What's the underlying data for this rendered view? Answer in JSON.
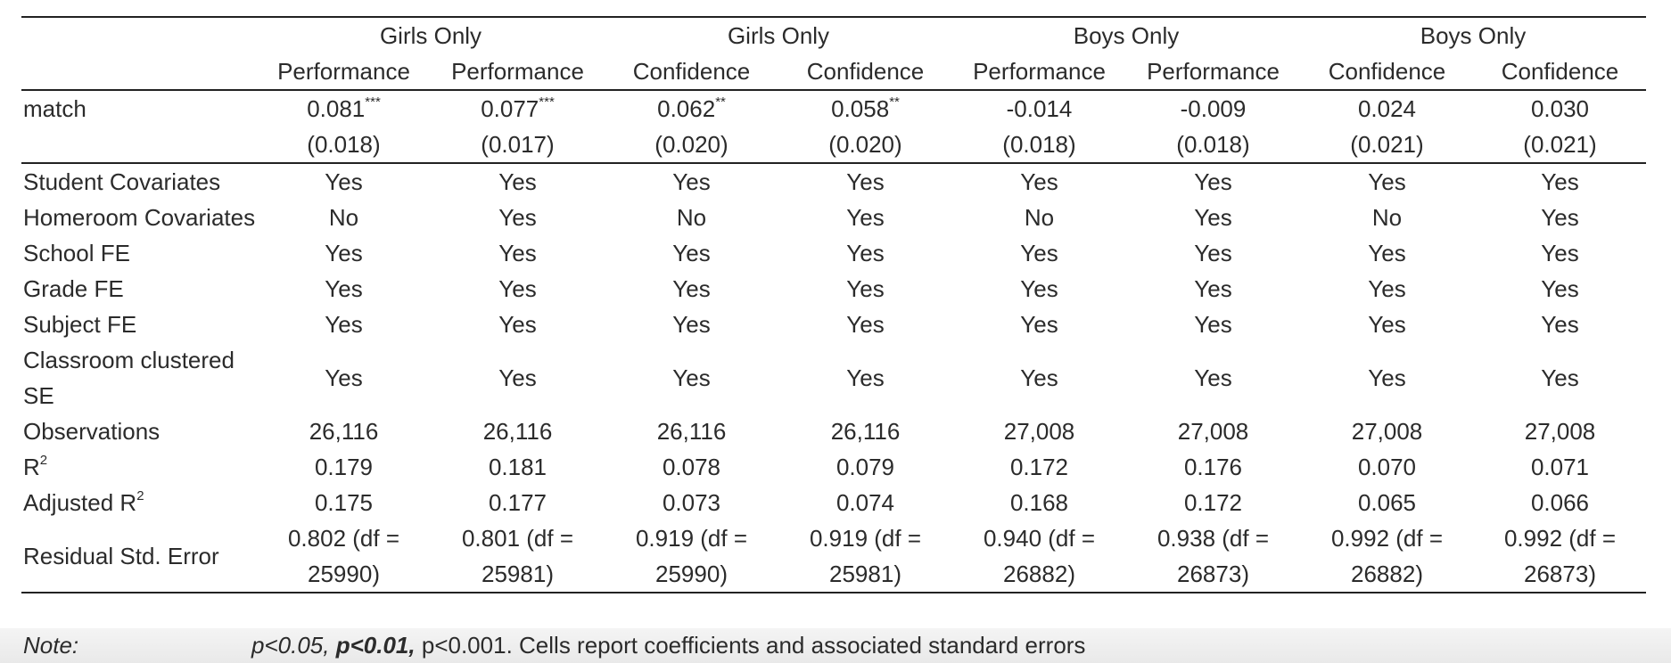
{
  "table": {
    "group_headers": [
      "Girls Only",
      "Girls Only",
      "Boys Only",
      "Boys Only"
    ],
    "columns": [
      "Performance",
      "Performance",
      "Confidence",
      "Confidence",
      "Performance",
      "Performance",
      "Confidence",
      "Confidence"
    ],
    "match": {
      "label": "match",
      "coefficients": [
        "0.081",
        "0.077",
        "0.062",
        "0.058",
        "-0.014",
        "-0.009",
        "0.024",
        "0.030"
      ],
      "stars": [
        "***",
        "***",
        "**",
        "**",
        "",
        "",
        "",
        ""
      ],
      "std_errors": [
        "(0.018)",
        "(0.017)",
        "(0.020)",
        "(0.020)",
        "(0.018)",
        "(0.018)",
        "(0.021)",
        "(0.021)"
      ]
    },
    "controls": [
      {
        "label": "Student Covariates",
        "values": [
          "Yes",
          "Yes",
          "Yes",
          "Yes",
          "Yes",
          "Yes",
          "Yes",
          "Yes"
        ]
      },
      {
        "label": "Homeroom Covariates",
        "values": [
          "No",
          "Yes",
          "No",
          "Yes",
          "No",
          "Yes",
          "No",
          "Yes"
        ]
      },
      {
        "label": "School FE",
        "values": [
          "Yes",
          "Yes",
          "Yes",
          "Yes",
          "Yes",
          "Yes",
          "Yes",
          "Yes"
        ]
      },
      {
        "label": "Grade FE",
        "values": [
          "Yes",
          "Yes",
          "Yes",
          "Yes",
          "Yes",
          "Yes",
          "Yes",
          "Yes"
        ]
      },
      {
        "label": "Subject FE",
        "values": [
          "Yes",
          "Yes",
          "Yes",
          "Yes",
          "Yes",
          "Yes",
          "Yes",
          "Yes"
        ]
      },
      {
        "label": "Classroom clustered SE",
        "values": [
          "Yes",
          "Yes",
          "Yes",
          "Yes",
          "Yes",
          "Yes",
          "Yes",
          "Yes"
        ]
      }
    ],
    "observations": {
      "label": "Observations",
      "values": [
        "26,116",
        "26,116",
        "26,116",
        "26,116",
        "27,008",
        "27,008",
        "27,008",
        "27,008"
      ]
    },
    "r2": {
      "label": "R",
      "sup": "2",
      "values": [
        "0.179",
        "0.181",
        "0.078",
        "0.079",
        "0.172",
        "0.176",
        "0.070",
        "0.071"
      ]
    },
    "adj_r2": {
      "label": "Adjusted R",
      "sup": "2",
      "values": [
        "0.175",
        "0.177",
        "0.073",
        "0.074",
        "0.168",
        "0.172",
        "0.065",
        "0.066"
      ]
    },
    "resid_se": {
      "label": "Residual Std. Error",
      "values": [
        "0.802 (df = 25990)",
        "0.801 (df = 25981)",
        "0.919 (df = 25990)",
        "0.919 (df = 25981)",
        "0.940 (df = 26882)",
        "0.938 (df = 26873)",
        "0.992 (df = 26882)",
        "0.992 (df = 26873)"
      ]
    }
  },
  "note": {
    "label": "Note:",
    "p1": "p<0.05,",
    "p2": "p<0.01,",
    "p3": "p<0.001.",
    "text": "Cells report coefficients and associated standard errors"
  }
}
